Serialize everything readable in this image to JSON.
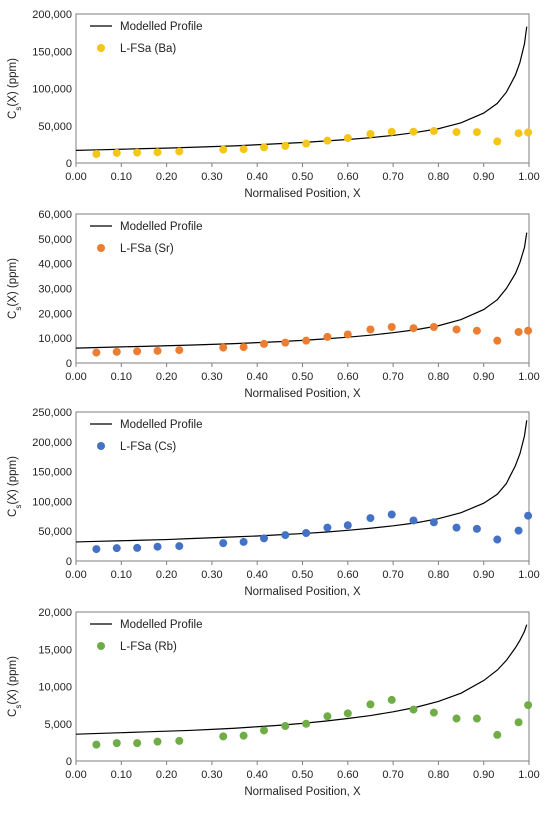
{
  "chart_data": [
    {
      "type": "scatter",
      "title": "",
      "xlabel": "Normalised Position, X",
      "ylabel_main": "C",
      "ylabel_sub": "s",
      "ylabel_rest": "(X) (ppm)",
      "xlim": [
        0,
        1
      ],
      "ylim": [
        0,
        200000
      ],
      "x_ticks": [
        "0.00",
        "0.10",
        "0.20",
        "0.30",
        "0.40",
        "0.50",
        "0.60",
        "0.70",
        "0.80",
        "0.90",
        "1.00"
      ],
      "y_ticks": [
        "0",
        "50,000",
        "100,000",
        "150,000",
        "200,000"
      ],
      "legend_position": "top-left",
      "grid": false,
      "model": {
        "name": "Modelled Profile",
        "color": "#000000",
        "x": [
          0.0,
          0.05,
          0.1,
          0.15,
          0.2,
          0.25,
          0.3,
          0.35,
          0.4,
          0.45,
          0.5,
          0.55,
          0.6,
          0.65,
          0.7,
          0.75,
          0.8,
          0.85,
          0.9,
          0.93,
          0.95,
          0.97,
          0.98,
          0.99,
          0.995
        ],
        "y": [
          17000,
          17700,
          18500,
          19300,
          20000,
          21000,
          22000,
          23000,
          24500,
          26000,
          27500,
          29500,
          31500,
          34000,
          37000,
          41000,
          46000,
          54000,
          67000,
          80000,
          95000,
          118000,
          135000,
          160000,
          183000
        ]
      },
      "series": [
        {
          "name": "L-FSa (Ba)",
          "color": "#F5C518",
          "x": [
            0.045,
            0.09,
            0.135,
            0.18,
            0.228,
            0.325,
            0.37,
            0.415,
            0.462,
            0.508,
            0.555,
            0.6,
            0.65,
            0.697,
            0.745,
            0.79,
            0.84,
            0.885,
            0.93,
            0.977,
            0.998
          ],
          "y": [
            12000,
            13500,
            14000,
            14500,
            15500,
            18000,
            18500,
            21000,
            23000,
            26000,
            30000,
            33500,
            39000,
            42000,
            42000,
            43000,
            41500,
            41500,
            29000,
            40000,
            41000
          ]
        }
      ]
    },
    {
      "type": "scatter",
      "title": "",
      "xlabel": "Normalised Position, X",
      "ylabel_main": "C",
      "ylabel_sub": "s",
      "ylabel_rest": "(X) (ppm)",
      "xlim": [
        0,
        1
      ],
      "ylim": [
        0,
        60000
      ],
      "x_ticks": [
        "0.00",
        "0.10",
        "0.20",
        "0.30",
        "0.40",
        "0.50",
        "0.60",
        "0.70",
        "0.80",
        "0.90",
        "1.00"
      ],
      "y_ticks": [
        "0",
        "10,000",
        "20,000",
        "30,000",
        "40,000",
        "50,000",
        "60,000"
      ],
      "legend_position": "top-left",
      "grid": false,
      "model": {
        "name": "Modelled Profile",
        "color": "#000000",
        "x": [
          0.0,
          0.05,
          0.1,
          0.15,
          0.2,
          0.25,
          0.3,
          0.35,
          0.4,
          0.45,
          0.5,
          0.55,
          0.6,
          0.65,
          0.7,
          0.75,
          0.8,
          0.85,
          0.9,
          0.93,
          0.95,
          0.97,
          0.98,
          0.99,
          0.995
        ],
        "y": [
          6000,
          6250,
          6500,
          6700,
          6950,
          7200,
          7500,
          7800,
          8200,
          8600,
          9100,
          9700,
          10400,
          11200,
          12200,
          13400,
          15000,
          17500,
          21500,
          25500,
          30000,
          36000,
          40500,
          46500,
          52500
        ]
      },
      "series": [
        {
          "name": "L-FSa (Sr)",
          "color": "#ED7D31",
          "x": [
            0.045,
            0.09,
            0.135,
            0.18,
            0.228,
            0.325,
            0.37,
            0.415,
            0.462,
            0.508,
            0.555,
            0.6,
            0.65,
            0.697,
            0.745,
            0.79,
            0.84,
            0.885,
            0.93,
            0.977,
            0.998
          ],
          "y": [
            4200,
            4500,
            4700,
            4900,
            5200,
            6200,
            6400,
            7700,
            8200,
            9000,
            10500,
            11500,
            13500,
            14500,
            14000,
            14500,
            13500,
            13000,
            9000,
            12500,
            13000
          ]
        }
      ]
    },
    {
      "type": "scatter",
      "title": "",
      "xlabel": "Normalised Position, X",
      "ylabel_main": "C",
      "ylabel_sub": "s",
      "ylabel_rest": "(X) (ppm)",
      "xlim": [
        0,
        1
      ],
      "ylim": [
        0,
        250000
      ],
      "x_ticks": [
        "0.00",
        "0.10",
        "0.20",
        "0.30",
        "0.40",
        "0.50",
        "0.60",
        "0.70",
        "0.80",
        "0.90",
        "1.00"
      ],
      "y_ticks": [
        "0",
        "50,000",
        "100,000",
        "150,000",
        "200,000",
        "250,000"
      ],
      "legend_position": "top-left",
      "grid": false,
      "model": {
        "name": "Modelled Profile",
        "color": "#000000",
        "x": [
          0.0,
          0.05,
          0.1,
          0.15,
          0.2,
          0.25,
          0.3,
          0.35,
          0.4,
          0.45,
          0.5,
          0.55,
          0.6,
          0.65,
          0.7,
          0.75,
          0.8,
          0.85,
          0.9,
          0.93,
          0.95,
          0.97,
          0.98,
          0.99,
          0.995
        ],
        "y": [
          32000,
          33000,
          34000,
          35000,
          36000,
          37500,
          39000,
          40500,
          42000,
          44000,
          46000,
          48500,
          51500,
          55000,
          59000,
          64000,
          71000,
          81000,
          97000,
          112000,
          130000,
          160000,
          180000,
          210000,
          236000
        ]
      },
      "series": [
        {
          "name": "L-FSa (Cs)",
          "color": "#4472C4",
          "x": [
            0.045,
            0.09,
            0.135,
            0.18,
            0.228,
            0.325,
            0.37,
            0.415,
            0.462,
            0.508,
            0.555,
            0.6,
            0.65,
            0.697,
            0.745,
            0.79,
            0.84,
            0.885,
            0.93,
            0.977,
            0.998
          ],
          "y": [
            20000,
            21500,
            22000,
            24000,
            25000,
            30000,
            32000,
            38000,
            43500,
            47000,
            56000,
            60000,
            72000,
            78000,
            68000,
            65000,
            56000,
            54000,
            36000,
            51000,
            76000
          ]
        }
      ]
    },
    {
      "type": "scatter",
      "title": "",
      "xlabel": "Normalised Position, X",
      "ylabel_main": "C",
      "ylabel_sub": "s",
      "ylabel_rest": "(X) (ppm)",
      "xlim": [
        0,
        1
      ],
      "ylim": [
        0,
        20000
      ],
      "x_ticks": [
        "0.00",
        "0.10",
        "0.20",
        "0.30",
        "0.40",
        "0.50",
        "0.60",
        "0.70",
        "0.80",
        "0.90",
        "1.00"
      ],
      "y_ticks": [
        "0",
        "5,000",
        "10,000",
        "15,000",
        "20,000"
      ],
      "legend_position": "top-left",
      "grid": false,
      "model": {
        "name": "Modelled Profile",
        "color": "#000000",
        "x": [
          0.0,
          0.05,
          0.1,
          0.15,
          0.2,
          0.25,
          0.3,
          0.35,
          0.4,
          0.45,
          0.5,
          0.55,
          0.6,
          0.65,
          0.7,
          0.75,
          0.8,
          0.85,
          0.9,
          0.93,
          0.95,
          0.97,
          0.98,
          0.99,
          0.995
        ],
        "y": [
          3600,
          3700,
          3800,
          3900,
          4000,
          4100,
          4250,
          4400,
          4600,
          4800,
          5050,
          5350,
          5700,
          6100,
          6600,
          7200,
          8000,
          9100,
          10800,
          12200,
          13500,
          15200,
          16200,
          17400,
          18300
        ]
      },
      "series": [
        {
          "name": "L-FSa (Rb)",
          "color": "#70AD47",
          "x": [
            0.045,
            0.09,
            0.135,
            0.18,
            0.228,
            0.325,
            0.37,
            0.415,
            0.462,
            0.508,
            0.555,
            0.6,
            0.65,
            0.697,
            0.745,
            0.79,
            0.84,
            0.885,
            0.93,
            0.977,
            0.998
          ],
          "y": [
            2200,
            2400,
            2400,
            2600,
            2700,
            3300,
            3400,
            4100,
            4700,
            5000,
            6000,
            6400,
            7600,
            8200,
            6900,
            6500,
            5700,
            5700,
            3500,
            5200,
            7500
          ]
        }
      ]
    }
  ]
}
